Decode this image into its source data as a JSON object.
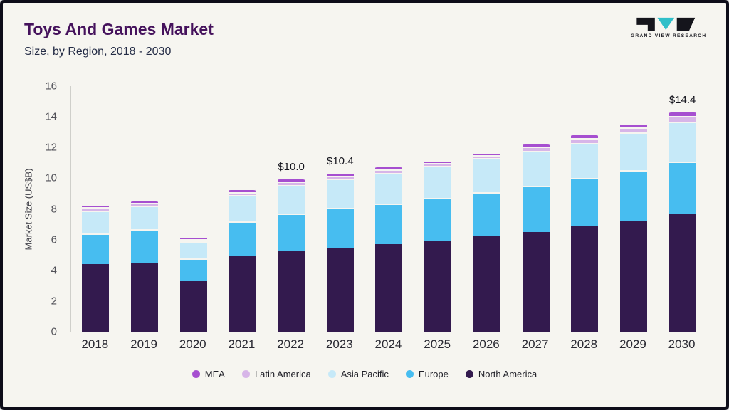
{
  "header": {
    "title": "Toys And Games Market",
    "subtitle": "Size, by Region, 2018 - 2030"
  },
  "logo": {
    "text": "GRAND VIEW RESEARCH",
    "teal": "#30bfc9",
    "black": "#15151c"
  },
  "chart_data": {
    "type": "bar",
    "stacked": true,
    "title": "Toys And Games Market Size, by Region, 2018 - 2030",
    "xlabel": "",
    "ylabel": "Market Size (US$B)",
    "ylim": [
      0,
      16
    ],
    "yticks": [
      0,
      2,
      4,
      6,
      8,
      10,
      12,
      14,
      16
    ],
    "grid": false,
    "legend_position": "bottom",
    "categories": [
      "2018",
      "2019",
      "2020",
      "2021",
      "2022",
      "2023",
      "2024",
      "2025",
      "2026",
      "2027",
      "2028",
      "2029",
      "2030"
    ],
    "series": [
      {
        "name": "North America",
        "color": "#331a4e",
        "values": [
          4.4,
          4.5,
          3.3,
          4.9,
          5.3,
          5.45,
          5.7,
          5.95,
          6.25,
          6.5,
          6.85,
          7.25,
          7.7
        ]
      },
      {
        "name": "Europe",
        "color": "#47bdf0",
        "values": [
          2.0,
          2.2,
          1.5,
          2.3,
          2.4,
          2.6,
          2.65,
          2.75,
          2.85,
          3.0,
          3.15,
          3.3,
          3.4
        ]
      },
      {
        "name": "Asia Pacific",
        "color": "#c6e9f8",
        "values": [
          1.5,
          1.5,
          1.1,
          1.7,
          1.85,
          1.9,
          2.0,
          2.1,
          2.2,
          2.3,
          2.3,
          2.45,
          2.6
        ]
      },
      {
        "name": "Latin America",
        "color": "#d7b5e8",
        "values": [
          0.2,
          0.2,
          0.15,
          0.2,
          0.22,
          0.22,
          0.22,
          0.2,
          0.2,
          0.25,
          0.3,
          0.3,
          0.35
        ]
      },
      {
        "name": "MEA",
        "color": "#a64fd0",
        "values": [
          0.2,
          0.2,
          0.15,
          0.2,
          0.23,
          0.23,
          0.23,
          0.2,
          0.2,
          0.25,
          0.3,
          0.3,
          0.35
        ]
      }
    ],
    "totals": [
      8.3,
      8.6,
      6.2,
      9.3,
      10.0,
      10.4,
      10.8,
      11.2,
      11.7,
      12.3,
      12.9,
      13.6,
      14.4
    ],
    "annotations": [
      {
        "category": "2022",
        "label": "$10.0"
      },
      {
        "category": "2023",
        "label": "$10.4"
      },
      {
        "category": "2030",
        "label": "$14.4"
      }
    ],
    "legend": [
      "MEA",
      "Latin America",
      "Asia Pacific",
      "Europe",
      "North America"
    ]
  }
}
